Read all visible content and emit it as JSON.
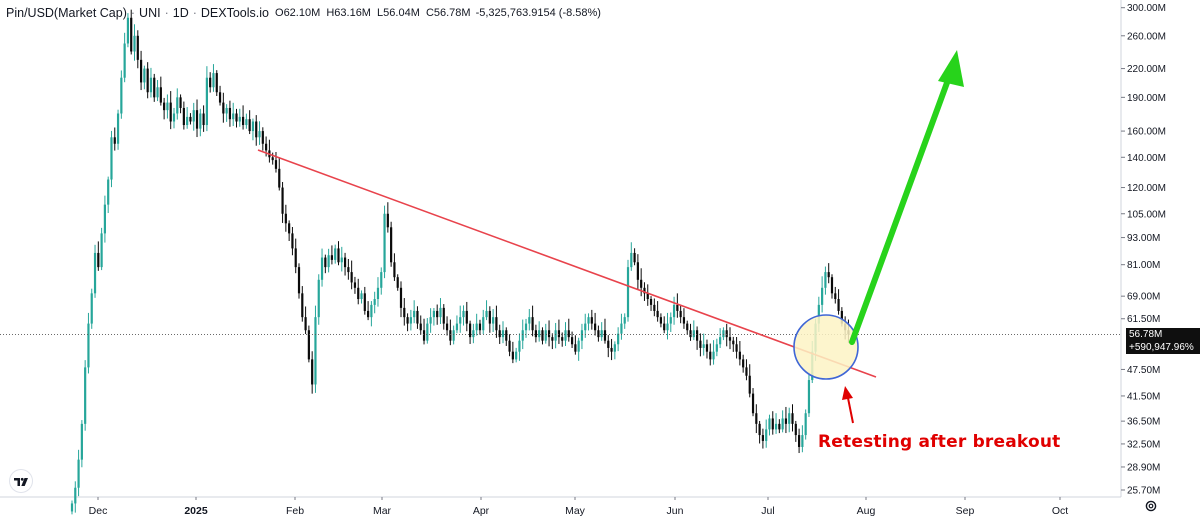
{
  "header": {
    "symbol": "Pin/USD(Market Cap)",
    "exchange": "UNI",
    "interval": "1D",
    "source": "DEXTools.io",
    "open_label": "O",
    "open": "62.10M",
    "high_label": "H",
    "high": "63.16M",
    "low_label": "L",
    "low": "56.04M",
    "close_label": "C",
    "close": "56.78M",
    "change": "-5,325,763.9154 (-8.58%)"
  },
  "price_tag": {
    "price": "56.78M",
    "change": "+590,947.96%"
  },
  "annotation": "Retesting after breakout",
  "colors": {
    "up": "#26a69a",
    "down": "#0a0a0a",
    "trendline": "#e8434c",
    "green_arrow": "#27d31b",
    "red_arrow": "#e00000",
    "circle_fill": "#fdf3c4",
    "circle_stroke": "#3f66d6"
  },
  "icons": {
    "logo": "tradingview-logo-icon",
    "settings": "gear-icon"
  },
  "chart_data": {
    "type": "candlestick",
    "y_scale": "log",
    "x_labels": [
      "Dec",
      "2025",
      "Feb",
      "Mar",
      "Apr",
      "May",
      "Jun",
      "Jul",
      "Aug",
      "Sep",
      "Oct"
    ],
    "y_ticks": [
      "25.70M",
      "28.90M",
      "32.50M",
      "36.50M",
      "41.50M",
      "47.50M",
      "61.50M",
      "69.00M",
      "81.00M",
      "93.00M",
      "105.00M",
      "120.00M",
      "140.00M",
      "160.00M",
      "190.00M",
      "220.00M",
      "260.00M",
      "300.00M"
    ],
    "y_tick_values": [
      25.7,
      28.9,
      32.5,
      36.5,
      41.5,
      47.5,
      61.5,
      69.0,
      81.0,
      93.0,
      105.0,
      120.0,
      140.0,
      160.0,
      190.0,
      220.0,
      260.0,
      300.0
    ],
    "y_range": [
      24.8,
      312
    ],
    "last_close": 56.78,
    "closes": [
      24,
      26,
      30,
      36,
      48,
      60,
      70,
      86,
      80,
      95,
      110,
      125,
      155,
      150,
      175,
      210,
      250,
      285,
      240,
      260,
      230,
      205,
      220,
      195,
      210,
      190,
      200,
      185,
      178,
      185,
      168,
      175,
      190,
      180,
      165,
      172,
      168,
      178,
      162,
      175,
      165,
      210,
      200,
      215,
      195,
      185,
      175,
      180,
      170,
      175,
      168,
      172,
      165,
      170,
      160,
      168,
      155,
      160,
      150,
      145,
      140,
      138,
      132,
      120,
      105,
      100,
      95,
      88,
      80,
      70,
      62,
      58,
      50,
      44,
      62,
      75,
      84,
      80,
      85,
      83,
      88,
      82,
      84,
      80,
      78,
      74,
      72,
      68,
      70,
      64,
      62,
      66,
      68,
      72,
      78,
      105,
      98,
      82,
      76,
      72,
      65,
      62,
      60,
      62,
      64,
      60,
      58,
      55,
      60,
      62,
      64,
      62,
      65,
      60,
      58,
      55,
      58,
      60,
      62,
      64,
      60,
      56,
      58,
      60,
      58,
      62,
      64,
      60,
      62,
      58,
      56,
      58,
      55,
      52,
      50,
      52,
      55,
      58,
      60,
      62,
      58,
      56,
      58,
      55,
      58,
      56,
      55,
      58,
      56,
      55,
      58,
      56,
      54,
      52,
      55,
      58,
      60,
      62,
      60,
      58,
      56,
      58,
      55,
      53,
      52,
      54,
      57,
      60,
      62,
      80,
      86,
      82,
      75,
      72,
      70,
      68,
      66,
      64,
      62,
      60,
      58,
      60,
      62,
      66,
      64,
      62,
      60,
      58,
      56,
      58,
      55,
      53,
      54,
      52,
      50,
      52,
      54,
      56,
      58,
      56,
      55,
      54,
      52,
      50,
      48,
      46,
      42,
      38,
      36,
      34,
      33,
      35,
      37,
      35,
      36,
      35,
      37,
      36,
      38,
      36,
      34,
      32,
      34,
      38,
      45,
      52,
      60,
      66,
      72,
      78,
      76,
      70,
      68,
      64,
      60,
      58,
      56.78
    ]
  }
}
